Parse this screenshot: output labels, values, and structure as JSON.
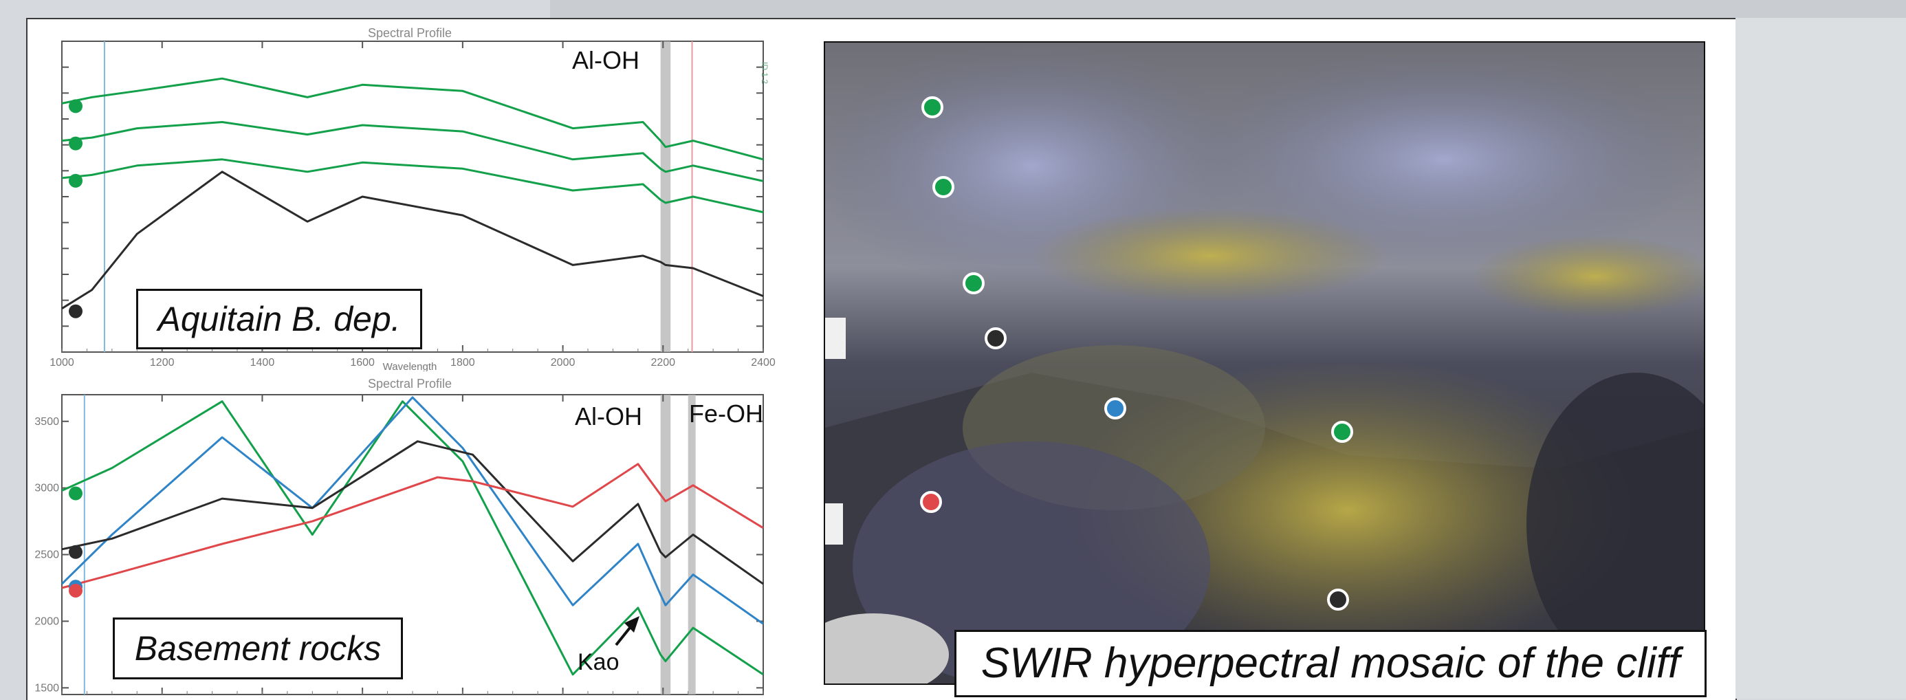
{
  "colors": {
    "green": "#13a04a",
    "black": "#2b2b2b",
    "blue": "#2f84c8",
    "red": "#e0474b",
    "band": "#b8b8b8"
  },
  "photo": {
    "caption": "SWIR hyperpectral mosaic of the cliff",
    "markers": [
      {
        "color": "green"
      },
      {
        "color": "green"
      },
      {
        "color": "green"
      },
      {
        "color": "black"
      },
      {
        "color": "blue"
      },
      {
        "color": "green"
      },
      {
        "color": "red"
      },
      {
        "color": "black"
      }
    ]
  },
  "chart_data": [
    {
      "type": "line",
      "title": "Spectral Profile",
      "xlabel": "Wavelength",
      "ylabel": "",
      "xlim": [
        1000,
        2400
      ],
      "x_ticks": [
        "1000",
        "1200",
        "1400",
        "1600",
        "1800",
        "2000",
        "2200",
        "2400"
      ],
      "annotations": [
        "Al-OH"
      ],
      "box_label": "Aquitain B. dep.",
      "right_axis_text": "ID 1 2",
      "legend_markers": [
        "green",
        "green",
        "green",
        "black"
      ],
      "vertical_lines": [
        {
          "x": 1085,
          "color": "#7fb8dc"
        },
        {
          "x": 2258,
          "color": "#e89aa0"
        }
      ],
      "shaded_band": [
        2195,
        2215
      ],
      "series": [
        {
          "color": "green",
          "x": [
            1000,
            1060,
            1150,
            1320,
            1490,
            1600,
            1800,
            2020,
            2160,
            2195,
            2205,
            2260,
            2400
          ],
          "y": [
            0.8,
            0.82,
            0.84,
            0.88,
            0.82,
            0.86,
            0.84,
            0.72,
            0.74,
            0.68,
            0.66,
            0.68,
            0.62
          ]
        },
        {
          "color": "green",
          "x": [
            1000,
            1060,
            1150,
            1320,
            1490,
            1600,
            1800,
            2020,
            2160,
            2195,
            2205,
            2260,
            2400
          ],
          "y": [
            0.68,
            0.69,
            0.72,
            0.74,
            0.7,
            0.73,
            0.71,
            0.62,
            0.64,
            0.59,
            0.58,
            0.6,
            0.55
          ]
        },
        {
          "color": "green",
          "x": [
            1000,
            1060,
            1150,
            1320,
            1490,
            1600,
            1800,
            2020,
            2160,
            2195,
            2205,
            2260,
            2400
          ],
          "y": [
            0.56,
            0.57,
            0.6,
            0.62,
            0.58,
            0.61,
            0.59,
            0.52,
            0.54,
            0.49,
            0.48,
            0.5,
            0.45
          ]
        },
        {
          "color": "black",
          "x": [
            1000,
            1060,
            1150,
            1320,
            1490,
            1600,
            1800,
            2020,
            2160,
            2195,
            2205,
            2260,
            2400
          ],
          "y": [
            0.14,
            0.2,
            0.38,
            0.58,
            0.42,
            0.5,
            0.44,
            0.28,
            0.31,
            0.29,
            0.28,
            0.27,
            0.18
          ]
        }
      ]
    },
    {
      "type": "line",
      "title": "Spectral Profile",
      "xlabel": "",
      "ylabel": "",
      "xlim": [
        1000,
        2400
      ],
      "ylim": [
        1450,
        3700
      ],
      "x_ticks": [
        "1000",
        "1200",
        "1400",
        "1600",
        "1800",
        "2000",
        "2200",
        "2400"
      ],
      "y_ticks": [
        "1500",
        "2000",
        "2500",
        "3000",
        "3500"
      ],
      "annotations": [
        "Al-OH",
        "Fe-OH",
        "Kao"
      ],
      "box_label": "Basement rocks",
      "legend_markers": [
        "green",
        "black",
        "red",
        "blue"
      ],
      "vertical_lines": [
        {
          "x": 1045,
          "color": "#7fb8dc"
        }
      ],
      "shaded_bands": [
        [
          2195,
          2215
        ],
        [
          2250,
          2265
        ]
      ],
      "series": [
        {
          "color": "green",
          "x": [
            1000,
            1100,
            1320,
            1500,
            1680,
            1800,
            2020,
            2150,
            2195,
            2205,
            2260,
            2400
          ],
          "y": [
            2980,
            3150,
            3650,
            2650,
            3650,
            3200,
            1600,
            2100,
            1750,
            1700,
            1950,
            1600
          ]
        },
        {
          "color": "blue",
          "x": [
            1000,
            1100,
            1320,
            1500,
            1700,
            1800,
            2020,
            2150,
            2195,
            2205,
            2260,
            2400
          ],
          "y": [
            2280,
            2650,
            3380,
            2850,
            3680,
            3300,
            2120,
            2580,
            2200,
            2120,
            2350,
            1980
          ]
        },
        {
          "color": "black",
          "x": [
            1000,
            1100,
            1320,
            1500,
            1710,
            1820,
            2020,
            2150,
            2195,
            2205,
            2260,
            2400
          ],
          "y": [
            2540,
            2620,
            2920,
            2850,
            3350,
            3250,
            2450,
            2880,
            2520,
            2480,
            2650,
            2280
          ]
        },
        {
          "color": "red",
          "x": [
            1000,
            1100,
            1320,
            1500,
            1750,
            1820,
            2020,
            2150,
            2195,
            2205,
            2260,
            2400
          ],
          "y": [
            2250,
            2350,
            2580,
            2750,
            3080,
            3050,
            2860,
            3180,
            2950,
            2900,
            3020,
            2700
          ]
        }
      ]
    }
  ]
}
